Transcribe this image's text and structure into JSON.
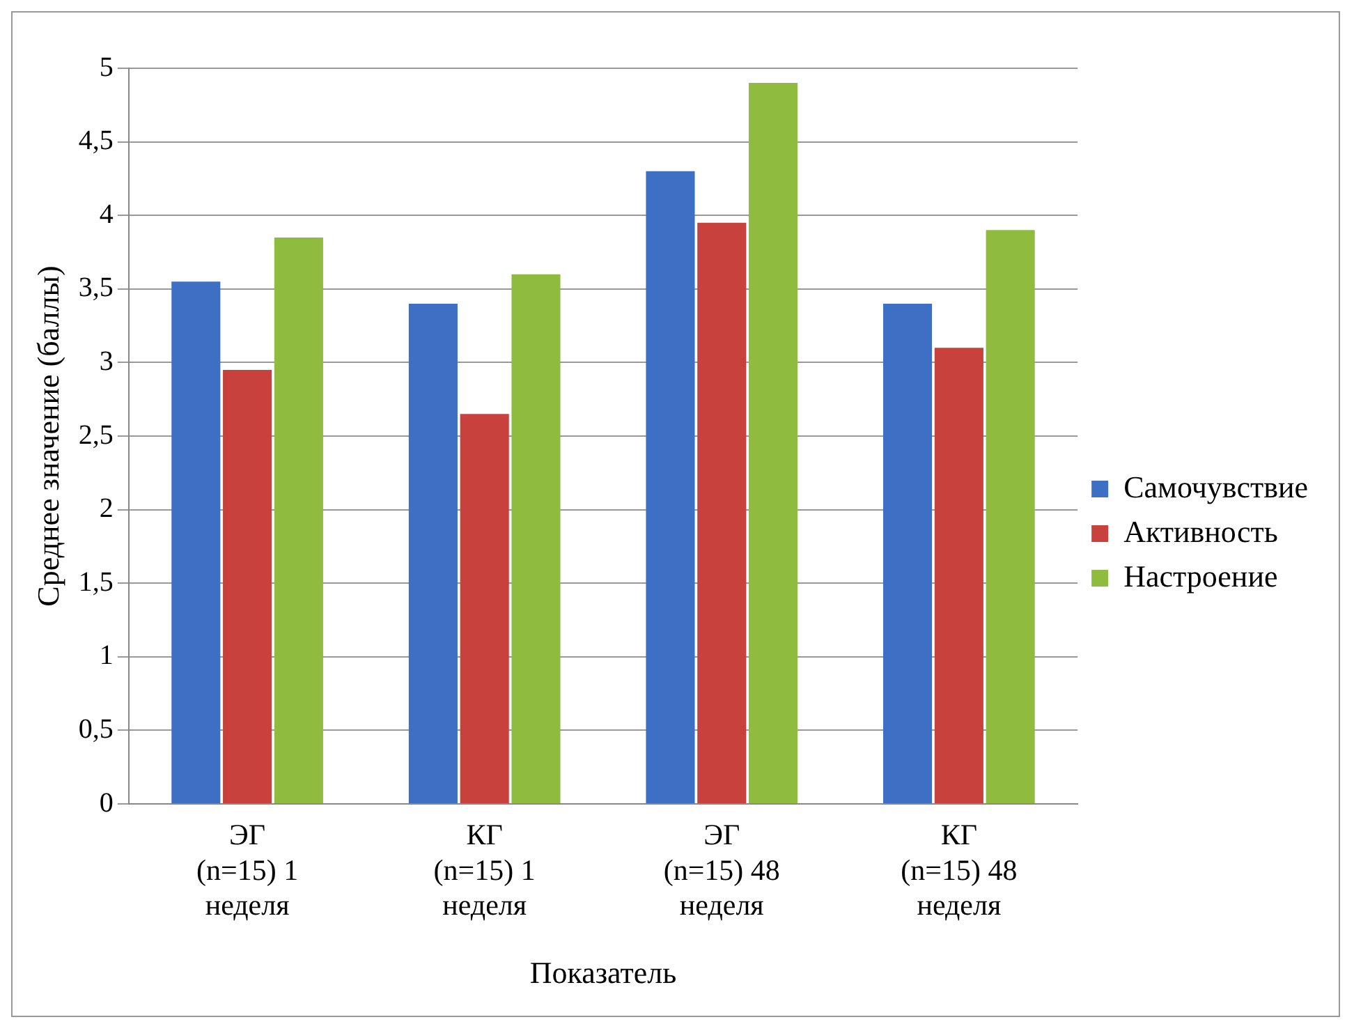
{
  "chart_data": {
    "type": "bar",
    "xlabel": "Показатель",
    "ylabel": "Среднее значение (баллы)",
    "categories": [
      "ЭГ\n(n=15) 1\nнеделя",
      "КГ\n(n=15) 1\nнеделя",
      "ЭГ\n(n=15) 48\nнеделя",
      "КГ\n(n=15) 48\nнеделя"
    ],
    "series": [
      {
        "name": "Самочувствие",
        "color": "#3d6fc4",
        "values": [
          3.55,
          3.4,
          4.3,
          3.4
        ]
      },
      {
        "name": "Активность",
        "color": "#c8413d",
        "values": [
          2.95,
          2.65,
          3.95,
          3.1
        ]
      },
      {
        "name": "Настроение",
        "color": "#8fbc3f",
        "values": [
          3.85,
          3.6,
          4.9,
          3.9
        ]
      }
    ],
    "ylim": [
      0,
      5
    ],
    "yticks": [
      0,
      {
        "value": 0.5,
        "label": "0,5"
      },
      1,
      {
        "value": 1.5,
        "label": "1,5"
      },
      2,
      {
        "value": 2.5,
        "label": "2,5"
      },
      3,
      {
        "value": 3.5,
        "label": "3,5"
      },
      4,
      {
        "value": 4.5,
        "label": "4,5"
      },
      5
    ],
    "grid": "y",
    "legend": "right"
  }
}
